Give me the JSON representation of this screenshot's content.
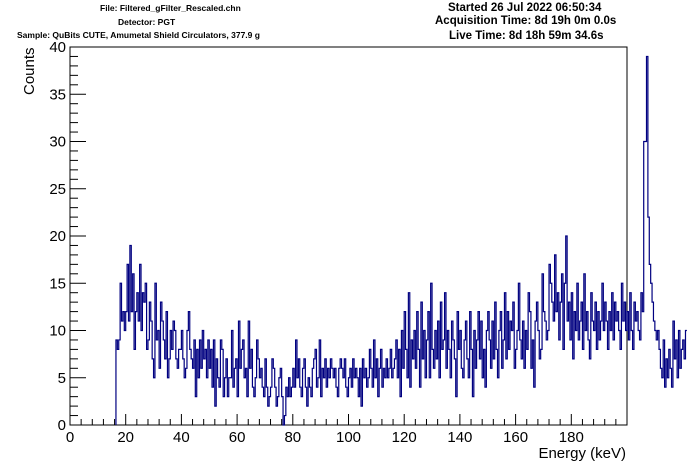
{
  "header": {
    "file": "File: Filtered_gFilter_Rescaled.chn",
    "detector": "Detector: PGT",
    "sample": "Sample: QuBits CUTE, Amumetal Shield Circulators, 377.9 g",
    "started": "Started 26 Jul 2022 06:50:34",
    "acquisition_time": "Acquisition Time: 8d 19h 0m 0.0s",
    "live_time": "Live Time: 8d 18h 59m 34.6s"
  },
  "chart_data": {
    "type": "histogram",
    "title": "",
    "xlabel": "Energy (keV)",
    "ylabel": "Counts",
    "xlim": [
      0,
      200
    ],
    "ylim": [
      0,
      40
    ],
    "xticks": [
      0,
      20,
      40,
      60,
      80,
      100,
      120,
      140,
      160,
      180
    ],
    "yticks": [
      0,
      5,
      10,
      15,
      20,
      25,
      30,
      35,
      40
    ],
    "grid": false,
    "legend": "none",
    "line_color": "#000080",
    "bin_width": 0.5,
    "x_start": 16.5,
    "counts": [
      9,
      8,
      9,
      15,
      11,
      12,
      10,
      12,
      17,
      11,
      19,
      12,
      16,
      8,
      12,
      14,
      11,
      17,
      10,
      14,
      13,
      15,
      8,
      9,
      13,
      11,
      7,
      5,
      15,
      9,
      10,
      6,
      13,
      11,
      9,
      7,
      12,
      5,
      7,
      10,
      8,
      11,
      10,
      7,
      6,
      8,
      8,
      10,
      7,
      5,
      6,
      10,
      12,
      8,
      7,
      6,
      9,
      3,
      8,
      5,
      9,
      6,
      10,
      7,
      8,
      5,
      9,
      6,
      8,
      4,
      9,
      2,
      7,
      5,
      4,
      9,
      8,
      3,
      5,
      7,
      3,
      5,
      5,
      10,
      4,
      6,
      7,
      3,
      11,
      6,
      8,
      9,
      5,
      6,
      3,
      11,
      6,
      8,
      4,
      3,
      5,
      9,
      7,
      5,
      6,
      4,
      3,
      7,
      4,
      2,
      3,
      4,
      7,
      6,
      4,
      2,
      3,
      5,
      6,
      3,
      0,
      1,
      4,
      3,
      5,
      3,
      4,
      6,
      4,
      9,
      5,
      7,
      4,
      3,
      6,
      7,
      4,
      2,
      5,
      4,
      3,
      6,
      7,
      8,
      4,
      5,
      9,
      3,
      6,
      5,
      7,
      4,
      6,
      5,
      7,
      6,
      5,
      6,
      4,
      3,
      6,
      7,
      6,
      5,
      7,
      4,
      3,
      5,
      6,
      4,
      7,
      5,
      6,
      5,
      3,
      6,
      2,
      7,
      5,
      6,
      4,
      5,
      8,
      6,
      4,
      9,
      5,
      7,
      3,
      6,
      8,
      4,
      6,
      5,
      7,
      5,
      6,
      8,
      5,
      6,
      7,
      9,
      5,
      8,
      3,
      10,
      6,
      12,
      8,
      5,
      14,
      4,
      9,
      7,
      10,
      6,
      12,
      8,
      4,
      13,
      7,
      10,
      5,
      9,
      12,
      5,
      15,
      8,
      6,
      10,
      7,
      11,
      5,
      13,
      8,
      9,
      14,
      6,
      10,
      8,
      5,
      11,
      9,
      7,
      3,
      12,
      8,
      10,
      6,
      5,
      9,
      11,
      7,
      5,
      12,
      8,
      3,
      10,
      6,
      9,
      12,
      7,
      11,
      5,
      8,
      4,
      10,
      12,
      9,
      6,
      11,
      7,
      13,
      8,
      5,
      10,
      12,
      6,
      9,
      14,
      7,
      12,
      8,
      11,
      10,
      13,
      6,
      8,
      10,
      15,
      9,
      7,
      11,
      6,
      10,
      8,
      14,
      12,
      6,
      9,
      4,
      11,
      13,
      10,
      7,
      8,
      16,
      12,
      11,
      9,
      10,
      17,
      15,
      13,
      11,
      18,
      12,
      14,
      9,
      13,
      16,
      8,
      15,
      20,
      11,
      13,
      9,
      14,
      7,
      12,
      10,
      15,
      9,
      11,
      13,
      8,
      16,
      10,
      12,
      9,
      7,
      14,
      11,
      10,
      13,
      8,
      12,
      9,
      11,
      15,
      10,
      13,
      11,
      8,
      12,
      10,
      14,
      9,
      13,
      11,
      12,
      10,
      8,
      15,
      11,
      13,
      10,
      12,
      9,
      14,
      10,
      8,
      13,
      11,
      12,
      10,
      9,
      14,
      12,
      30,
      30,
      39,
      22,
      17,
      15,
      13,
      11,
      10,
      9,
      10,
      8,
      6,
      5,
      9,
      4,
      7,
      5,
      8,
      6,
      4,
      11,
      7,
      9,
      5,
      10,
      6,
      8,
      9,
      7,
      10
    ]
  }
}
